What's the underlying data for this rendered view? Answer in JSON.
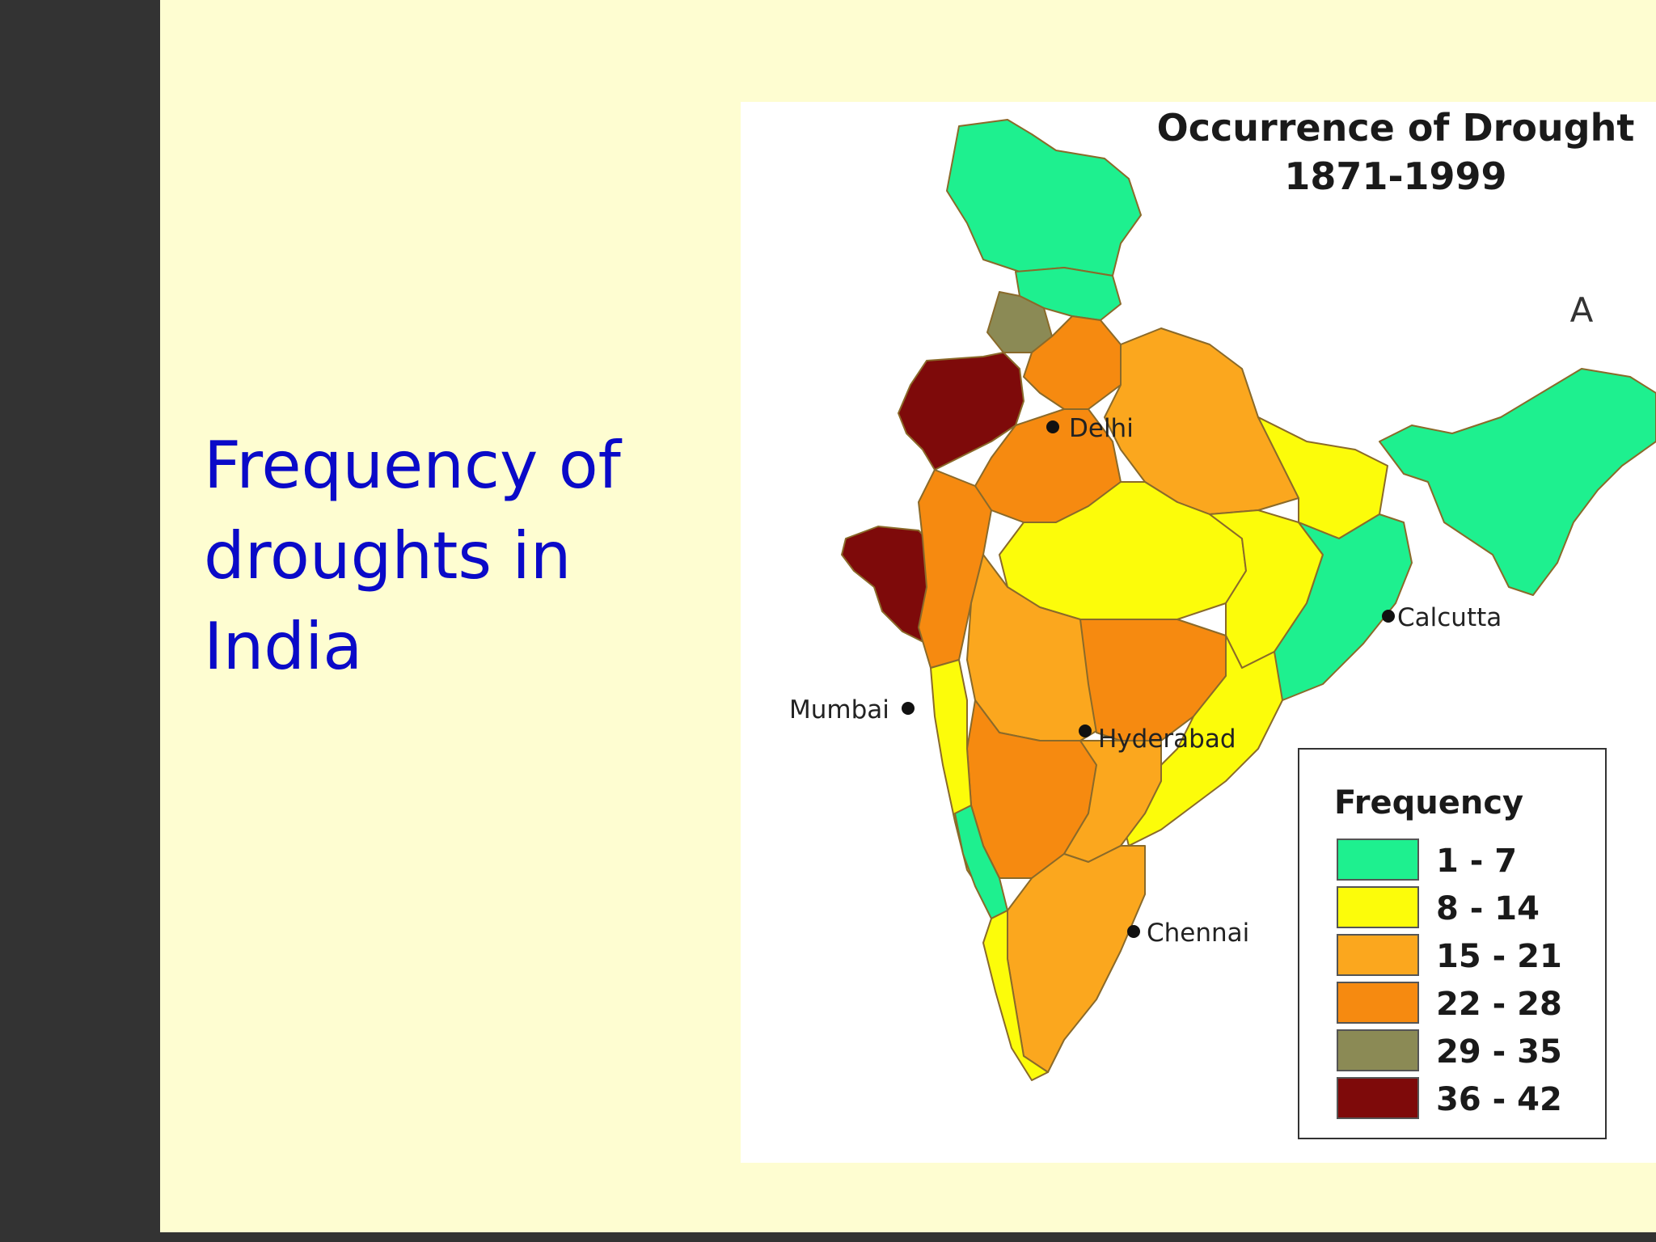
{
  "slide": {
    "title": "Frequency  of\ndroughts in\nIndia"
  },
  "map": {
    "title_line1": "Occurrence of Drought",
    "title_line2": "1871-1999",
    "north_symbol": "A",
    "cities": {
      "delhi": "Delhi",
      "calcutta": "Calcutta",
      "mumbai": "Mumbai",
      "hyderabad": "Hyderabad",
      "chennai": "Chennai"
    },
    "legend": {
      "title": "Frequency",
      "items": [
        {
          "label": "1 - 7",
          "color": "#1ef08f"
        },
        {
          "label": "8 - 14",
          "color": "#fcfc0a"
        },
        {
          "label": "15 - 21",
          "color": "#fba71e"
        },
        {
          "label": "22 - 28",
          "color": "#f68a10"
        },
        {
          "label": "29 - 35",
          "color": "#8b8a55"
        },
        {
          "label": "36 - 42",
          "color": "#7e0a0a"
        }
      ]
    }
  },
  "colors": {
    "sidebar": "#333333",
    "background": "#fefdd1",
    "title_text": "#0a0ac8"
  }
}
